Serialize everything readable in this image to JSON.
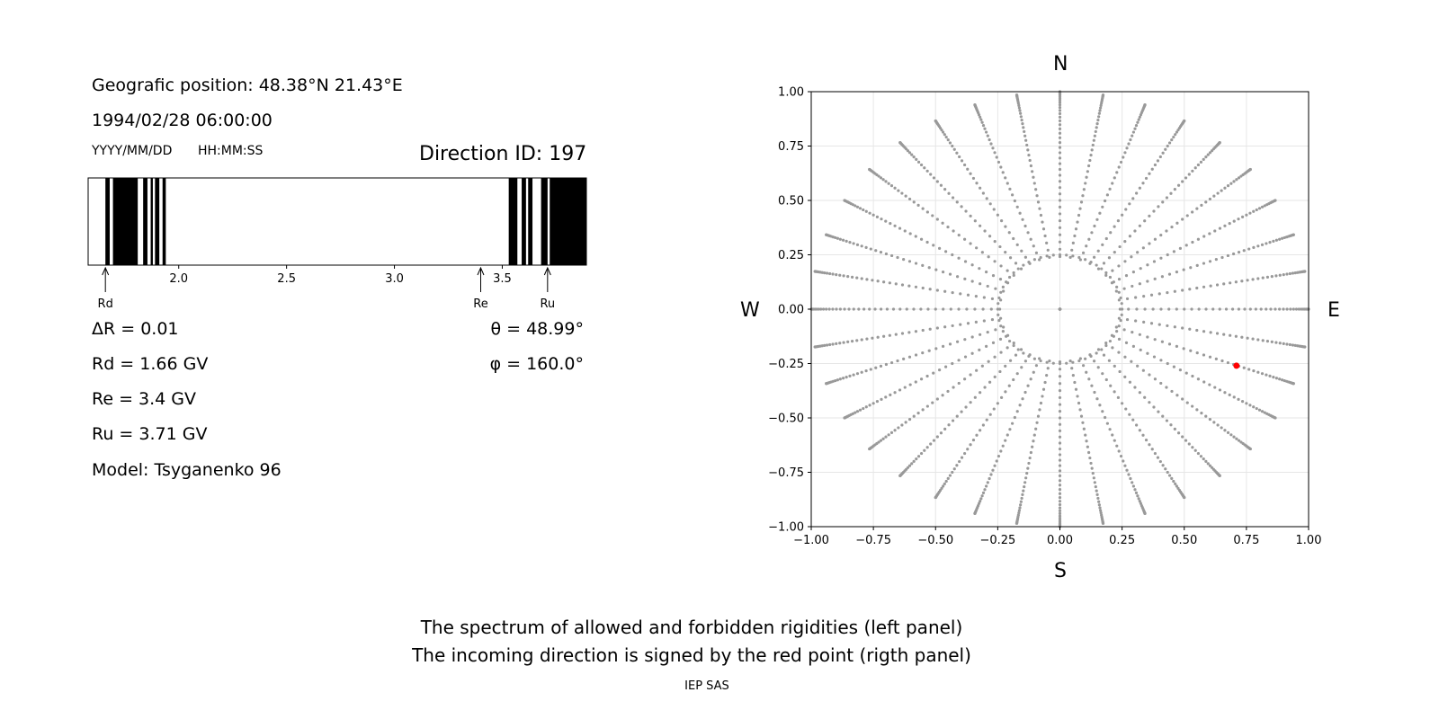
{
  "left_panel": {
    "position": "Geografic position: 48.38°N 21.43°E",
    "datetime": "1994/02/28 06:00:00",
    "date_format": "YYYY/MM/DD",
    "time_format": "HH:MM:SS",
    "direction_id": "Direction ID: 197",
    "delta_r": "ΔR = 0.01",
    "rd": "Rd = 1.66 GV",
    "re": "Re = 3.4 GV",
    "ru": "Ru = 3.71 GV",
    "model": "Model: Tsyganenko 96",
    "theta": "θ = 48.99°",
    "phi": "φ = 160.0°",
    "markers": {
      "rd_label": "Rd",
      "re_label": "Re",
      "ru_label": "Ru"
    }
  },
  "right_panel": {
    "north": "N",
    "south": "S",
    "west": "W",
    "east": "E"
  },
  "footer": {
    "line1": "The spectrum of allowed and forbidden rigidities (left panel)",
    "line2": "The incoming direction is signed by the red point (rigth panel)",
    "credit": "IEP SAS"
  },
  "colors": {
    "points": "#999999",
    "highlight": "#ff0000",
    "bars": "#000000"
  },
  "chart_data": [
    {
      "type": "bar",
      "title": "",
      "xlim": [
        1.58,
        3.89
      ],
      "x_ticks": [
        "2.0",
        "2.5",
        "3.0",
        "3.5"
      ],
      "x_tick_values": [
        2.0,
        2.5,
        3.0,
        3.5
      ],
      "forbidden_intervals": [
        [
          1.66,
          1.68
        ],
        [
          1.695,
          1.81
        ],
        [
          1.835,
          1.855
        ],
        [
          1.87,
          1.88
        ],
        [
          1.89,
          1.91
        ],
        [
          1.925,
          1.94
        ],
        [
          3.53,
          3.57
        ],
        [
          3.59,
          3.61
        ],
        [
          3.62,
          3.64
        ],
        [
          3.68,
          3.71
        ],
        [
          3.72,
          3.89
        ]
      ],
      "markers": {
        "Rd": 1.66,
        "Re": 3.4,
        "Ru": 3.71
      }
    },
    {
      "type": "scatter",
      "title": "",
      "xlim": [
        -1.0,
        1.0
      ],
      "ylim": [
        -1.0,
        1.0
      ],
      "x_ticks": [
        "−1.00",
        "−0.75",
        "−0.50",
        "−0.25",
        "0.00",
        "0.25",
        "0.50",
        "0.75",
        "1.00"
      ],
      "y_ticks": [
        "1.00",
        "0.75",
        "0.50",
        "0.25",
        "0.00",
        "−0.25",
        "−0.50",
        "−0.75",
        "−1.00"
      ],
      "tick_values": [
        -1.0,
        -0.75,
        -0.5,
        -0.25,
        0.0,
        0.25,
        0.5,
        0.75,
        1.0
      ],
      "grid": true,
      "highlight_point": {
        "x": 0.71,
        "y": -0.26
      },
      "grid_points": "polar net: directions every 10° of azimuth, polar angle 0–90° sampled radially (sin θ projection), clipped to the plot frame"
    }
  ]
}
